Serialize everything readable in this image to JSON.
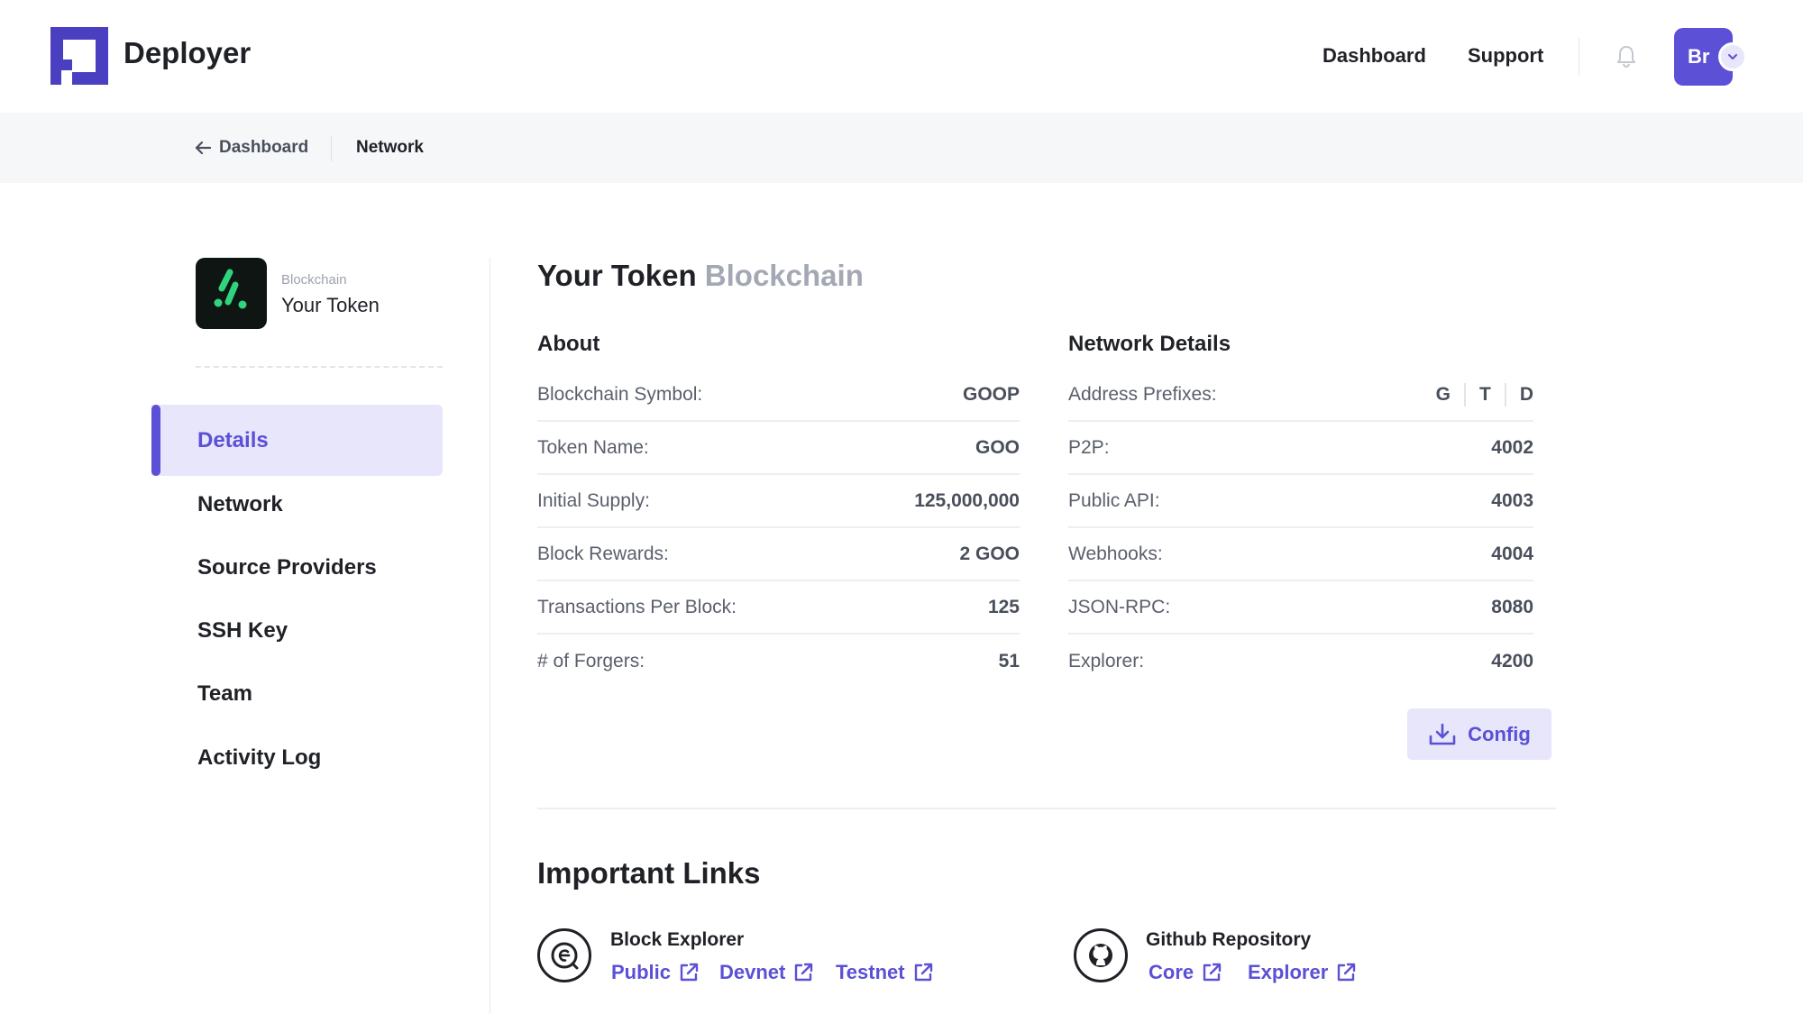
{
  "header": {
    "brand": "Deployer",
    "nav": {
      "dashboard": "Dashboard",
      "support": "Support"
    },
    "avatar_initials": "Br",
    "icons": {
      "logo": "deployer-logo",
      "bell": "bell-icon",
      "chevron": "chevron-down-icon"
    }
  },
  "breadcrumb": {
    "back_label": "Dashboard",
    "current": "Network"
  },
  "sidebar": {
    "token_kind": "Blockchain",
    "token_name": "Your Token",
    "items": [
      {
        "label": "Details",
        "active": true
      },
      {
        "label": "Network",
        "active": false
      },
      {
        "label": "Source Providers",
        "active": false
      },
      {
        "label": "SSH Key",
        "active": false
      },
      {
        "label": "Team",
        "active": false
      },
      {
        "label": "Activity Log",
        "active": false
      }
    ]
  },
  "main": {
    "title": "Your Token",
    "title_suffix": "Blockchain",
    "about": {
      "heading": "About",
      "rows": [
        {
          "label": "Blockchain Symbol:",
          "value": "GOOP"
        },
        {
          "label": "Token Name:",
          "value": "GOO"
        },
        {
          "label": "Initial Supply:",
          "value": "125,000,000"
        },
        {
          "label": "Block Rewards:",
          "value": "2 GOO"
        },
        {
          "label": "Transactions Per Block:",
          "value": "125"
        },
        {
          "label": "# of Forgers:",
          "value": "51"
        }
      ]
    },
    "network": {
      "heading": "Network Details",
      "prefix_label": "Address Prefixes:",
      "prefixes": [
        "G",
        "T",
        "D"
      ],
      "rows": [
        {
          "label": "P2P:",
          "value": "4002"
        },
        {
          "label": "Public API:",
          "value": "4003"
        },
        {
          "label": "Webhooks:",
          "value": "4004"
        },
        {
          "label": "JSON-RPC:",
          "value": "8080"
        },
        {
          "label": "Explorer:",
          "value": "4200"
        }
      ]
    },
    "config_button": "Config",
    "links": {
      "heading": "Important Links",
      "block_explorer": {
        "title": "Block Explorer",
        "links": [
          "Public",
          "Devnet",
          "Testnet"
        ]
      },
      "github": {
        "title": "Github Repository",
        "links": [
          "Core",
          "Explorer"
        ]
      }
    }
  },
  "colors": {
    "accent": "#5b50d6",
    "accent_light": "#e7e6fb",
    "token_icon_bg": "#0f1512",
    "token_icon_fg": "#2fd47e"
  }
}
